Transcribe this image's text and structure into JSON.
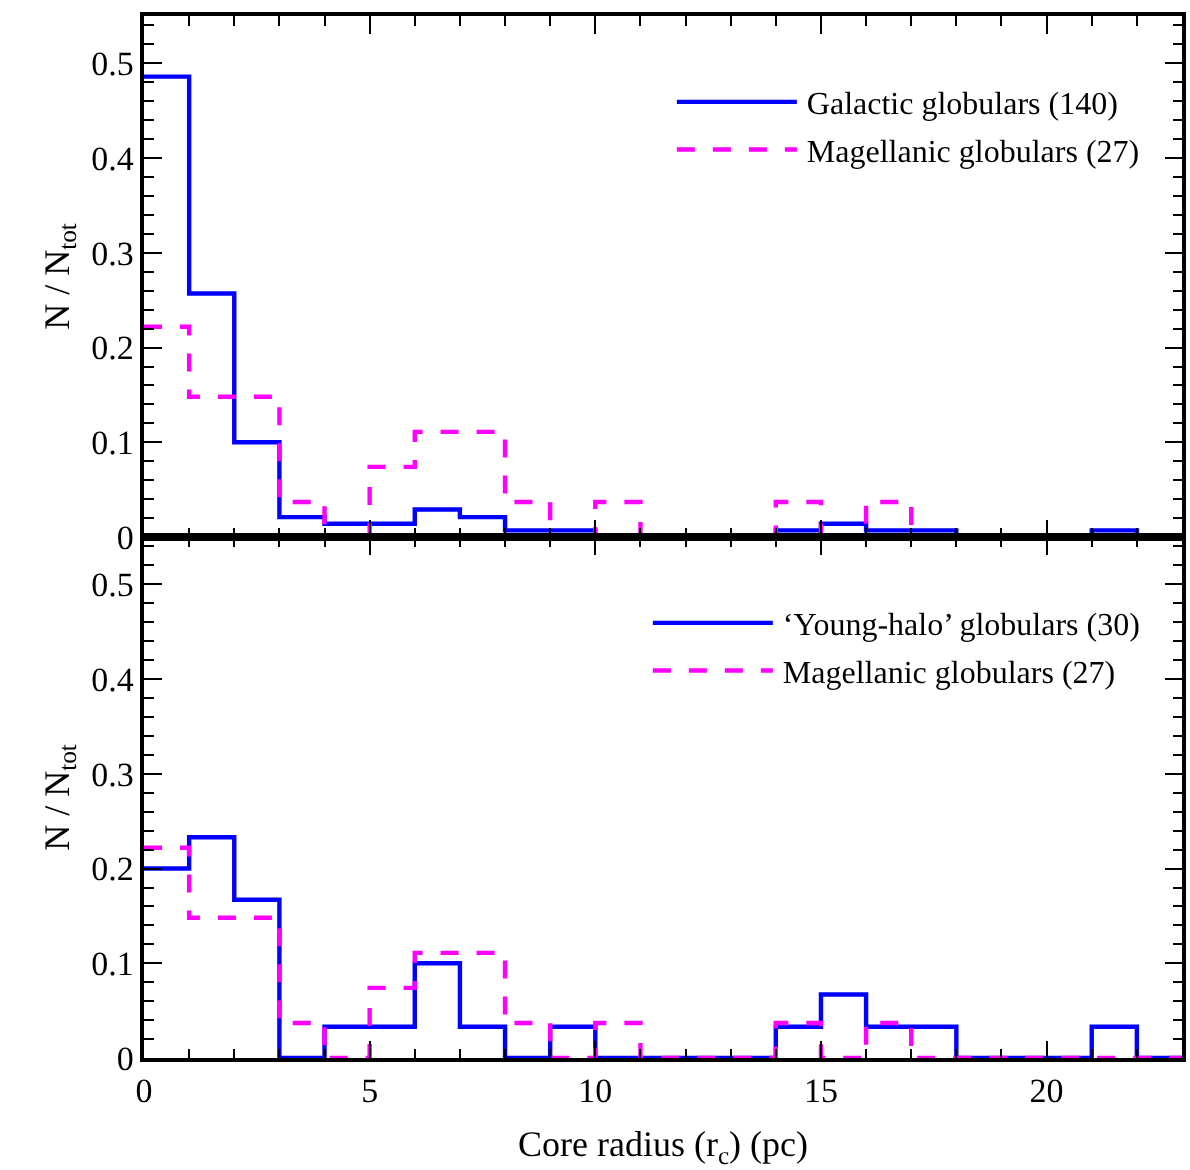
{
  "chart_data": [
    {
      "type": "histogram",
      "ylabel": "N / N$_{tot}$",
      "bins": [
        0,
        1,
        2,
        3,
        4,
        5,
        6,
        7,
        8,
        9,
        10,
        11,
        12,
        13,
        14,
        15,
        16,
        17,
        18,
        19,
        20,
        21,
        22,
        23
      ],
      "xlim": [
        0,
        23
      ],
      "xticks": [
        0,
        5,
        10,
        15,
        20
      ],
      "ylim": [
        0,
        0.55
      ],
      "yticks": [
        0,
        0.1,
        0.2,
        0.3,
        0.4,
        0.5
      ],
      "tick_labels": "y",
      "legend": "top right",
      "series": [
        {
          "name": "Galactic globulars (140)",
          "color": "#0000ff",
          "line_style": "solid",
          "values": [
            0.486,
            0.257,
            0.1,
            0.021,
            0.014,
            0.014,
            0.029,
            0.021,
            0.007,
            0.007,
            0,
            0,
            0,
            0,
            0.007,
            0.014,
            0.007,
            0.007,
            0,
            0,
            0,
            0.007,
            0
          ]
        },
        {
          "name": "Magellanic globulars (27)",
          "color": "#ff00ff",
          "line_style": "dashed",
          "values": [
            0.222,
            0.148,
            0.148,
            0.037,
            0,
            0.074,
            0.111,
            0.111,
            0.037,
            0,
            0.037,
            0,
            0,
            0,
            0.037,
            0,
            0.037,
            0,
            0,
            0,
            0,
            0,
            0
          ]
        }
      ]
    },
    {
      "type": "histogram",
      "xlabel": "Core radius (r$_{c}$) (pc)",
      "ylabel": "N / N$_{tot}$",
      "bins": [
        0,
        1,
        2,
        3,
        4,
        5,
        6,
        7,
        8,
        9,
        10,
        11,
        12,
        13,
        14,
        15,
        16,
        17,
        18,
        19,
        20,
        21,
        22,
        23
      ],
      "xlim": [
        0,
        23
      ],
      "xticks": [
        0,
        5,
        10,
        15,
        20
      ],
      "ylim": [
        0,
        0.55
      ],
      "yticks": [
        0,
        0.1,
        0.2,
        0.3,
        0.4,
        0.5
      ],
      "legend": "top right",
      "series": [
        {
          "name": "‘Young-halo’ globulars (30)",
          "color": "#0000ff",
          "line_style": "solid",
          "values": [
            0.2,
            0.233,
            0.167,
            0,
            0.033,
            0.033,
            0.1,
            0.033,
            0,
            0.033,
            0,
            0,
            0,
            0,
            0.033,
            0.067,
            0.033,
            0.033,
            0,
            0,
            0,
            0.033,
            0
          ]
        },
        {
          "name": "Magellanic globulars (27)",
          "color": "#ff00ff",
          "line_style": "dashed",
          "values": [
            0.222,
            0.148,
            0.148,
            0.037,
            0,
            0.074,
            0.111,
            0.111,
            0.037,
            0,
            0.037,
            0,
            0,
            0,
            0.037,
            0,
            0.037,
            0,
            0,
            0,
            0,
            0,
            0
          ]
        }
      ]
    }
  ]
}
